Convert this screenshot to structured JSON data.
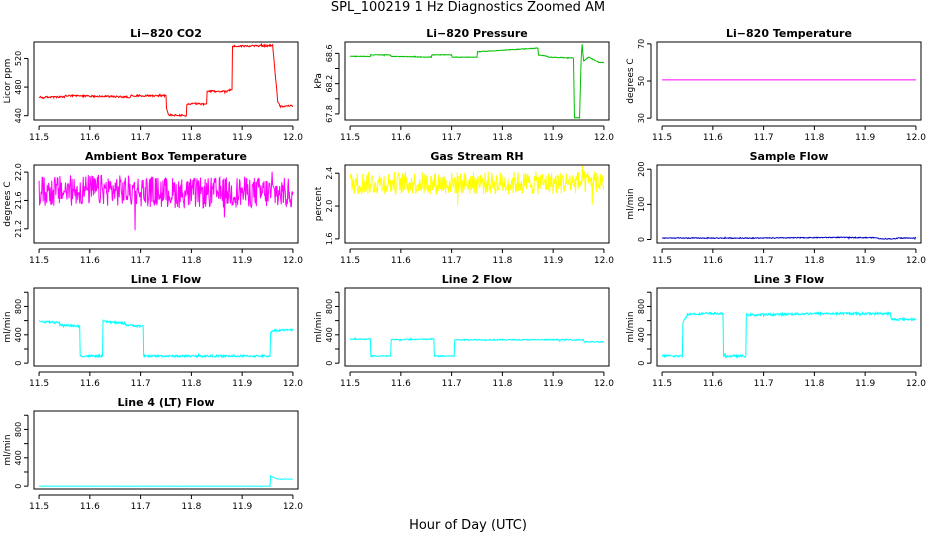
{
  "figure": {
    "title": "SPL_100219  1 Hz Diagnostics Zoomed AM",
    "xlabel": "Hour of Day (UTC)"
  },
  "chart_data": [
    {
      "type": "line",
      "title": "Li−820 CO2",
      "ylabel": "Licor ppm",
      "xlabel": "",
      "xlim": [
        11.49,
        12.01
      ],
      "ylim": [
        434,
        543
      ],
      "xticks": [
        "11.5",
        "11.6",
        "11.7",
        "11.8",
        "11.9",
        "12.0"
      ],
      "yticks": [
        "440",
        "480",
        "520"
      ],
      "grid": false,
      "series": [
        {
          "color": "#ff0000",
          "noise": 1.2,
          "x": [
            11.5,
            11.51,
            11.51,
            11.55,
            11.55,
            11.63,
            11.63,
            11.68,
            11.68,
            11.75,
            11.75,
            11.755,
            11.755,
            11.79,
            11.79,
            11.8,
            11.8,
            11.83,
            11.83,
            11.87,
            11.87,
            11.88,
            11.88,
            11.96,
            11.965,
            11.97,
            11.975,
            12.0
          ],
          "y": [
            466,
            465,
            466,
            466,
            468,
            467,
            467,
            466,
            468,
            468,
            452,
            441,
            441,
            440,
            456,
            456,
            457,
            456,
            474,
            474,
            476,
            476,
            537,
            538,
            500,
            460,
            453,
            454
          ]
        }
      ]
    },
    {
      "type": "line",
      "title": "Li−820 Pressure",
      "ylabel": "kPa",
      "xlabel": "",
      "xlim": [
        11.49,
        12.01
      ],
      "ylim": [
        67.72,
        68.75
      ],
      "xticks": [
        "11.5",
        "11.6",
        "11.7",
        "11.8",
        "11.9",
        "12.0"
      ],
      "yticks": [
        "67.8",
        "68.0",
        "68.2",
        "68.4",
        "68.6"
      ],
      "ytick_values": [
        67.8,
        68.0,
        68.2,
        68.4,
        68.6
      ],
      "ytick_labels": [
        "67.8",
        "",
        "68.2",
        "",
        "68.6"
      ],
      "grid": false,
      "series": [
        {
          "color": "#00c000",
          "noise": 0.004,
          "x": [
            11.5,
            11.54,
            11.54,
            11.58,
            11.58,
            11.66,
            11.66,
            11.7,
            11.7,
            11.75,
            11.75,
            11.87,
            11.87,
            11.87,
            11.89,
            11.89,
            11.94,
            11.942,
            11.944,
            11.952,
            11.955,
            11.957,
            11.96,
            11.97,
            11.99,
            12.0
          ],
          "y": [
            68.56,
            68.56,
            68.58,
            68.58,
            68.56,
            68.55,
            68.58,
            68.58,
            68.55,
            68.55,
            68.62,
            68.67,
            68.67,
            68.58,
            68.56,
            68.55,
            68.54,
            67.75,
            67.75,
            67.75,
            68.5,
            68.72,
            68.5,
            68.55,
            68.48,
            68.48
          ]
        }
      ]
    },
    {
      "type": "line",
      "title": "Li−820 Temperature",
      "ylabel": "degrees C",
      "xlabel": "",
      "xlim": [
        11.49,
        12.01
      ],
      "ylim": [
        29,
        71
      ],
      "xticks": [
        "11.5",
        "11.6",
        "11.7",
        "11.8",
        "11.9",
        "12.0"
      ],
      "yticks": [
        "30",
        "50",
        "70"
      ],
      "grid": false,
      "series": [
        {
          "color": "#ff00ff",
          "noise": 0,
          "x": [
            11.5,
            12.0
          ],
          "y": [
            50.6,
            50.6
          ]
        }
      ]
    },
    {
      "type": "line",
      "title": "Ambient Box Temperature",
      "ylabel": "degrees C",
      "xlabel": "",
      "xlim": [
        11.49,
        12.01
      ],
      "ylim": [
        21.0,
        22.1
      ],
      "xticks": [
        "11.5",
        "11.6",
        "11.7",
        "11.8",
        "11.9",
        "12.0"
      ],
      "yticks": [
        "21.2",
        "21.6",
        "22.0"
      ],
      "grid": false,
      "series": [
        {
          "color": "#ff00ff",
          "noise": 0.22,
          "x": [
            11.5,
            11.6,
            11.7,
            11.8,
            11.9,
            12.0
          ],
          "y": [
            21.72,
            21.75,
            21.73,
            21.7,
            21.72,
            21.7
          ]
        }
      ]
    },
    {
      "type": "line",
      "title": "Gas Stream RH",
      "ylabel": "percent",
      "xlabel": "",
      "xlim": [
        11.49,
        12.01
      ],
      "ylim": [
        1.55,
        2.5
      ],
      "xticks": [
        "11.5",
        "11.6",
        "11.7",
        "11.8",
        "11.9",
        "12.0"
      ],
      "yticks": [
        "1.6",
        "2.0",
        "2.4"
      ],
      "grid": false,
      "series": [
        {
          "color": "#ffff00",
          "noise": 0.14,
          "x": [
            11.5,
            11.6,
            11.7,
            11.8,
            11.9,
            12.0
          ],
          "y": [
            2.28,
            2.28,
            2.28,
            2.28,
            2.28,
            2.3
          ]
        }
      ]
    },
    {
      "type": "line",
      "title": "Sample Flow",
      "ylabel": "ml/min",
      "xlabel": "",
      "xlim": [
        11.49,
        12.01
      ],
      "ylim": [
        -10,
        212
      ],
      "xticks": [
        "11.5",
        "11.6",
        "11.7",
        "11.8",
        "11.9",
        "12.0"
      ],
      "yticks": [
        "0",
        "100",
        "200"
      ],
      "grid": false,
      "series": [
        {
          "color": "#0000c0",
          "noise": 1.2,
          "x": [
            11.5,
            11.7,
            11.85,
            11.92,
            11.93,
            11.96,
            11.965,
            12.0
          ],
          "y": [
            4,
            4,
            6,
            5,
            2,
            2,
            4,
            4
          ]
        }
      ]
    },
    {
      "type": "line",
      "title": "Line 1 Flow",
      "ylabel": "ml/min",
      "xlabel": "",
      "xlim": [
        11.49,
        12.01
      ],
      "ylim": [
        -40,
        1060
      ],
      "xticks": [
        "11.5",
        "11.6",
        "11.7",
        "11.8",
        "11.9",
        "12.0"
      ],
      "yticks": [
        "0",
        "400",
        "800"
      ],
      "ytick_values": [
        0,
        200,
        400,
        600,
        800,
        1000
      ],
      "ytick_labels": [
        "0",
        "",
        "400",
        "",
        "800",
        ""
      ],
      "grid": false,
      "series": [
        {
          "color": "#00ffff",
          "noise": 14,
          "x": [
            11.5,
            11.54,
            11.54,
            11.58,
            11.58,
            11.625,
            11.625,
            11.67,
            11.67,
            11.705,
            11.705,
            11.955,
            11.955,
            11.96,
            12.0
          ],
          "y": [
            590,
            570,
            540,
            520,
            100,
            100,
            590,
            560,
            540,
            520,
            100,
            100,
            420,
            460,
            470
          ]
        }
      ]
    },
    {
      "type": "line",
      "title": "Line 2 Flow",
      "ylabel": "ml/min",
      "xlabel": "",
      "xlim": [
        11.49,
        12.01
      ],
      "ylim": [
        -40,
        1060
      ],
      "xticks": [
        "11.5",
        "11.6",
        "11.7",
        "11.8",
        "11.9",
        "12.0"
      ],
      "yticks": [
        "0",
        "400",
        "800"
      ],
      "ytick_values": [
        0,
        200,
        400,
        600,
        800,
        1000
      ],
      "ytick_labels": [
        "0",
        "",
        "400",
        "",
        "800",
        ""
      ],
      "grid": false,
      "series": [
        {
          "color": "#00ffff",
          "noise": 8,
          "x": [
            11.5,
            11.54,
            11.54,
            11.58,
            11.58,
            11.665,
            11.665,
            11.705,
            11.705,
            11.96,
            11.96,
            12.0
          ],
          "y": [
            340,
            340,
            100,
            100,
            330,
            340,
            100,
            100,
            330,
            330,
            300,
            300
          ]
        }
      ]
    },
    {
      "type": "line",
      "title": "Line 3 Flow",
      "ylabel": "ml/min",
      "xlabel": "",
      "xlim": [
        11.49,
        12.01
      ],
      "ylim": [
        -40,
        1060
      ],
      "xticks": [
        "11.5",
        "11.6",
        "11.7",
        "11.8",
        "11.9",
        "12.0"
      ],
      "yticks": [
        "0",
        "400",
        "800"
      ],
      "ytick_values": [
        0,
        200,
        400,
        600,
        800,
        1000
      ],
      "ytick_labels": [
        "0",
        "",
        "400",
        "",
        "800",
        ""
      ],
      "grid": false,
      "series": [
        {
          "color": "#00ffff",
          "noise": 16,
          "x": [
            11.5,
            11.54,
            11.54,
            11.55,
            11.58,
            11.62,
            11.62,
            11.665,
            11.665,
            11.68,
            11.8,
            11.95,
            11.95,
            12.0
          ],
          "y": [
            100,
            100,
            560,
            690,
            700,
            700,
            100,
            100,
            680,
            680,
            700,
            700,
            620,
            620
          ]
        }
      ]
    },
    {
      "type": "line",
      "title": "Line 4 (LT) Flow",
      "ylabel": "ml/min",
      "xlabel": "",
      "xlim": [
        11.49,
        12.01
      ],
      "ylim": [
        -40,
        1060
      ],
      "xticks": [
        "11.5",
        "11.6",
        "11.7",
        "11.8",
        "11.9",
        "12.0"
      ],
      "yticks": [
        "0",
        "400",
        "800"
      ],
      "ytick_values": [
        0,
        200,
        400,
        600,
        800,
        1000
      ],
      "ytick_labels": [
        "0",
        "",
        "400",
        "",
        "800",
        ""
      ],
      "grid": false,
      "series": [
        {
          "color": "#00ffff",
          "noise": 1,
          "x": [
            11.5,
            11.955,
            11.955,
            11.96,
            11.97,
            12.0
          ],
          "y": [
            0,
            0,
            150,
            130,
            100,
            100
          ]
        }
      ]
    }
  ]
}
